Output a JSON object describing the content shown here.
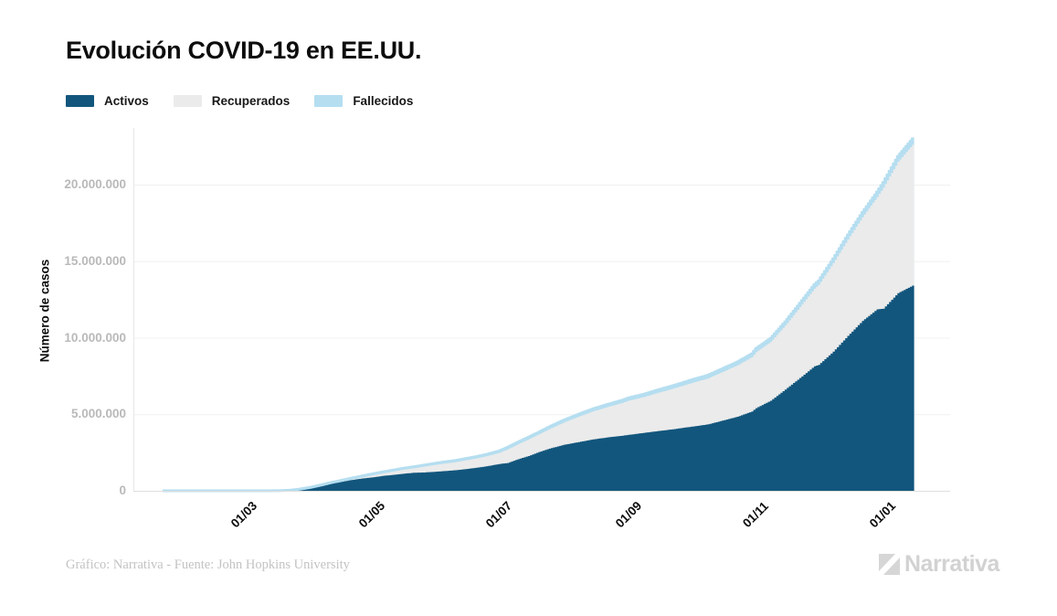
{
  "header": {
    "title": "Evolución COVID-19 en EE.UU."
  },
  "legend": {
    "items": [
      {
        "label": "Activos",
        "color": "#12567D"
      },
      {
        "label": "Recuperados",
        "color": "#EBEBEB"
      },
      {
        "label": "Fallecidos",
        "color": "#B5DEF0"
      }
    ]
  },
  "y_axis": {
    "label": "Número de casos",
    "ticks": [
      {
        "label": "0",
        "value_millions": 0
      },
      {
        "label": "5.000.000",
        "value_millions": 5
      },
      {
        "label": "10.000.000",
        "value_millions": 10
      },
      {
        "label": "15.000.000",
        "value_millions": 15
      },
      {
        "label": "20.000.000",
        "value_millions": 20
      }
    ]
  },
  "x_axis": {
    "ticks": [
      {
        "label": "01/03",
        "day": 39
      },
      {
        "label": "01/05",
        "day": 100
      },
      {
        "label": "01/07",
        "day": 161
      },
      {
        "label": "01/09",
        "day": 223
      },
      {
        "label": "01/11",
        "day": 284
      },
      {
        "label": "01/01",
        "day": 345
      }
    ]
  },
  "footer": {
    "credit": "Gráfico: Narrativa - Fuente: John Hopkins University",
    "logo_text": "Narrativa"
  },
  "chart_data": {
    "type": "area",
    "stacked": true,
    "title": "Evolución COVID-19 en EE.UU.",
    "xlabel": "",
    "ylabel": "Número de casos",
    "ylim": [
      0,
      23000000
    ],
    "grid": "horizontal",
    "legend_position": "top-left",
    "x_unit": "days since 22/01/2020; chart spans ~22/01/2020 to ~16/01/2021",
    "values_unit": "cumulative cases, millions",
    "series_names": [
      "Activos",
      "Recuperados",
      "Fallecidos"
    ],
    "colors": {
      "Activos": "#12567D",
      "Recuperados": "#EBEBEB",
      "Fallecidos": "#B5DEF0"
    },
    "points_format": [
      "day",
      "activos_M",
      "recuperados_M",
      "fallecidos_M"
    ],
    "points": [
      [
        0,
        0,
        0,
        0
      ],
      [
        30,
        2e-05,
        0,
        0
      ],
      [
        39,
        0.0001,
        0,
        0
      ],
      [
        48,
        0.001,
        0,
        0
      ],
      [
        55,
        0.006,
        0.0001,
        0.0001
      ],
      [
        60,
        0.032,
        0.0002,
        0.0004
      ],
      [
        65,
        0.098,
        0.001,
        0.002
      ],
      [
        70,
        0.202,
        0.008,
        0.005
      ],
      [
        75,
        0.336,
        0.019,
        0.011
      ],
      [
        80,
        0.477,
        0.032,
        0.021
      ],
      [
        85,
        0.58,
        0.057,
        0.033
      ],
      [
        90,
        0.7,
        0.075,
        0.045
      ],
      [
        95,
        0.8,
        0.106,
        0.055
      ],
      [
        100,
        0.871,
        0.164,
        0.065
      ],
      [
        105,
        0.968,
        0.189,
        0.073
      ],
      [
        110,
        1.039,
        0.23,
        0.081
      ],
      [
        115,
        1.113,
        0.268,
        0.089
      ],
      [
        120,
        1.178,
        0.298,
        0.094
      ],
      [
        125,
        1.197,
        0.384,
        0.099
      ],
      [
        130,
        1.242,
        0.444,
        0.104
      ],
      [
        135,
        1.29,
        0.491,
        0.109
      ],
      [
        140,
        1.344,
        0.524,
        0.112
      ],
      [
        145,
        1.417,
        0.577,
        0.116
      ],
      [
        150,
        1.504,
        0.607,
        0.119
      ],
      [
        155,
        1.602,
        0.656,
        0.122
      ],
      [
        161,
        1.75,
        0.729,
        0.128
      ],
      [
        165,
        1.816,
        0.894,
        0.13
      ],
      [
        170,
        2.063,
        0.984,
        0.133
      ],
      [
        175,
        2.272,
        1.09,
        0.138
      ],
      [
        180,
        2.529,
        1.16,
        0.141
      ],
      [
        185,
        2.753,
        1.28,
        0.147
      ],
      [
        192,
        3.005,
        1.461,
        0.154
      ],
      [
        199,
        3.182,
        1.656,
        0.162
      ],
      [
        206,
        3.358,
        1.833,
        0.169
      ],
      [
        213,
        3.489,
        1.985,
        0.176
      ],
      [
        220,
        3.598,
        2.14,
        0.182
      ],
      [
        223,
        3.655,
        2.231,
        0.184
      ],
      [
        230,
        3.778,
        2.333,
        0.189
      ],
      [
        237,
        3.9,
        2.495,
        0.195
      ],
      [
        244,
        4.014,
        2.646,
        0.2
      ],
      [
        251,
        4.151,
        2.794,
        0.205
      ],
      [
        254,
        4.2,
        2.873,
        0.207
      ],
      [
        261,
        4.34,
        2.999,
        0.211
      ],
      [
        268,
        4.586,
        3.177,
        0.217
      ],
      [
        275,
        4.834,
        3.354,
        0.222
      ],
      [
        282,
        5.178,
        3.545,
        0.227
      ],
      [
        284,
        5.399,
        3.66,
        0.231
      ],
      [
        291,
        5.883,
        3.84,
        0.237
      ],
      [
        298,
        6.614,
        4.18,
        0.246
      ],
      [
        305,
        7.363,
        4.63,
        0.257
      ],
      [
        312,
        8.138,
        5.065,
        0.267
      ],
      [
        314,
        8.224,
        5.226,
        0.27
      ],
      [
        321,
        9.088,
        5.786,
        0.286
      ],
      [
        328,
        10.119,
        6.298,
        0.303
      ],
      [
        335,
        11.098,
        6.77,
        0.322
      ],
      [
        342,
        11.852,
        7.33,
        0.338
      ],
      [
        345,
        11.898,
        7.9,
        0.352
      ],
      [
        352,
        12.912,
        8.57,
        0.368
      ],
      [
        359,
        13.4,
        9.2,
        0.39
      ]
    ]
  }
}
